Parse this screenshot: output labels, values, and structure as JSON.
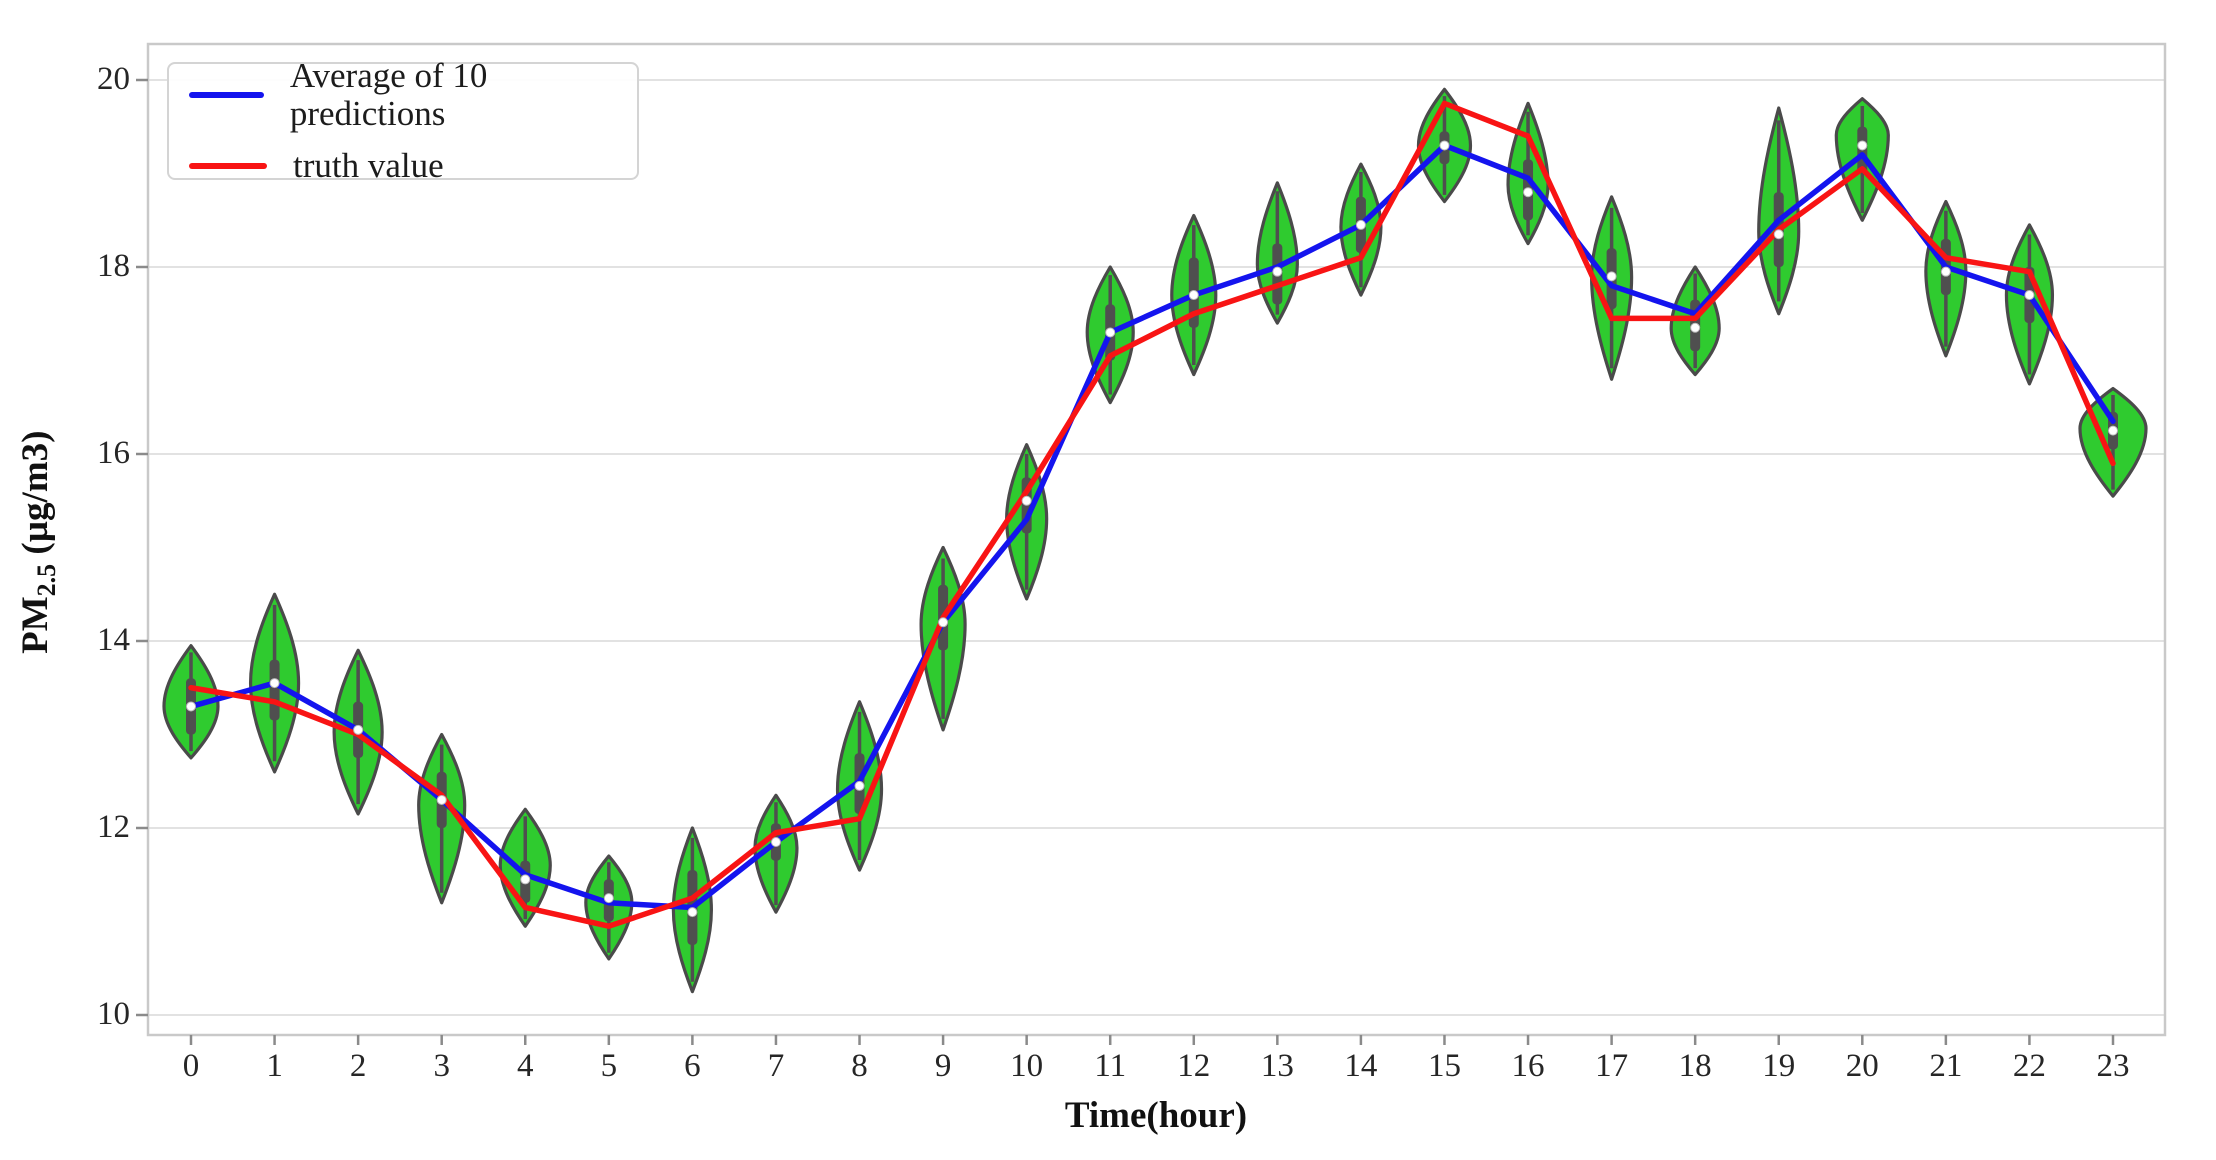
{
  "legend": {
    "items": [
      {
        "label": "Average of 10 predictions",
        "color": "#1414ee"
      },
      {
        "label": "truth value",
        "color": "#f81414"
      }
    ]
  },
  "x_axis": {
    "label": "Time(hour)",
    "ticks": [
      "0",
      "1",
      "2",
      "3",
      "4",
      "5",
      "6",
      "7",
      "8",
      "9",
      "10",
      "11",
      "12",
      "13",
      "14",
      "15",
      "16",
      "17",
      "18",
      "19",
      "20",
      "21",
      "22",
      "23"
    ]
  },
  "y_axis": {
    "label_main": "PM",
    "label_sub": "2.5",
    "label_unit": " (µg/m3)",
    "ticks": [
      "10",
      "12",
      "14",
      "16",
      "18",
      "20"
    ]
  },
  "chart_data": {
    "type": "violin+line",
    "title": "",
    "xlabel": "Time(hour)",
    "ylabel": "PM2.5 (ug/m3)",
    "categories": [
      0,
      1,
      2,
      3,
      4,
      5,
      6,
      7,
      8,
      9,
      10,
      11,
      12,
      13,
      14,
      15,
      16,
      17,
      18,
      19,
      20,
      21,
      22,
      23
    ],
    "ylim": [
      9.79,
      20.39
    ],
    "yticks": [
      10,
      12,
      14,
      16,
      18,
      20
    ],
    "grid": "horizontal",
    "legend_position": "upper-left",
    "series": [
      {
        "name": "Average of 10 predictions",
        "color": "#1414ee",
        "values": [
          13.3,
          13.55,
          13.05,
          12.3,
          11.5,
          11.2,
          11.15,
          11.85,
          12.5,
          14.2,
          15.3,
          17.3,
          17.7,
          18.0,
          18.45,
          19.3,
          18.95,
          17.8,
          17.5,
          18.5,
          19.2,
          18.0,
          17.7,
          16.35
        ]
      },
      {
        "name": "truth value",
        "color": "#f81414",
        "values": [
          13.5,
          13.35,
          13.0,
          12.35,
          11.15,
          10.95,
          11.25,
          11.95,
          12.1,
          14.25,
          15.6,
          17.05,
          17.5,
          17.8,
          18.1,
          19.75,
          19.4,
          17.45,
          17.45,
          18.4,
          19.05,
          18.1,
          17.95,
          15.9
        ]
      }
    ],
    "violins": [
      {
        "hour": 0,
        "min": 12.75,
        "max": 13.95,
        "median": 13.3,
        "q1": 13.0,
        "q3": 13.6,
        "half_width": 27,
        "peak_frac": 0.46
      },
      {
        "hour": 1,
        "min": 12.6,
        "max": 14.5,
        "median": 13.55,
        "q1": 13.15,
        "q3": 13.8,
        "half_width": 24,
        "peak_frac": 0.5
      },
      {
        "hour": 2,
        "min": 12.15,
        "max": 13.9,
        "median": 13.05,
        "q1": 12.75,
        "q3": 13.35,
        "half_width": 24,
        "peak_frac": 0.5
      },
      {
        "hour": 3,
        "min": 11.2,
        "max": 13.0,
        "median": 12.3,
        "q1": 12.0,
        "q3": 12.6,
        "half_width": 23,
        "peak_frac": 0.58
      },
      {
        "hour": 4,
        "min": 10.95,
        "max": 12.2,
        "median": 11.45,
        "q1": 11.2,
        "q3": 11.65,
        "half_width": 25,
        "peak_frac": 0.52
      },
      {
        "hour": 5,
        "min": 10.6,
        "max": 11.7,
        "median": 11.25,
        "q1": 11.0,
        "q3": 11.45,
        "half_width": 23,
        "peak_frac": 0.55
      },
      {
        "hour": 6,
        "min": 10.25,
        "max": 12.0,
        "median": 11.1,
        "q1": 10.75,
        "q3": 11.55,
        "half_width": 19,
        "peak_frac": 0.5
      },
      {
        "hour": 7,
        "min": 11.1,
        "max": 12.35,
        "median": 11.85,
        "q1": 11.65,
        "q3": 12.05,
        "half_width": 21,
        "peak_frac": 0.55
      },
      {
        "hour": 8,
        "min": 11.55,
        "max": 13.35,
        "median": 12.45,
        "q1": 12.15,
        "q3": 12.8,
        "half_width": 22,
        "peak_frac": 0.48
      },
      {
        "hour": 9,
        "min": 13.05,
        "max": 15.0,
        "median": 14.2,
        "q1": 13.9,
        "q3": 14.6,
        "half_width": 22,
        "peak_frac": 0.58
      },
      {
        "hour": 10,
        "min": 14.45,
        "max": 16.1,
        "median": 15.5,
        "q1": 15.15,
        "q3": 15.75,
        "half_width": 20,
        "peak_frac": 0.52
      },
      {
        "hour": 11,
        "min": 16.55,
        "max": 18.0,
        "median": 17.3,
        "q1": 17.0,
        "q3": 17.6,
        "half_width": 23,
        "peak_frac": 0.52
      },
      {
        "hour": 12,
        "min": 16.85,
        "max": 18.55,
        "median": 17.7,
        "q1": 17.35,
        "q3": 18.1,
        "half_width": 22,
        "peak_frac": 0.5
      },
      {
        "hour": 13,
        "min": 17.4,
        "max": 18.9,
        "median": 17.95,
        "q1": 17.6,
        "q3": 18.25,
        "half_width": 20,
        "peak_frac": 0.42
      },
      {
        "hour": 14,
        "min": 17.7,
        "max": 19.1,
        "median": 18.45,
        "q1": 18.15,
        "q3": 18.75,
        "half_width": 20,
        "peak_frac": 0.52
      },
      {
        "hour": 15,
        "min": 18.7,
        "max": 19.9,
        "median": 19.3,
        "q1": 19.1,
        "q3": 19.45,
        "half_width": 26,
        "peak_frac": 0.5
      },
      {
        "hour": 16,
        "min": 18.25,
        "max": 19.75,
        "median": 18.8,
        "q1": 18.5,
        "q3": 19.15,
        "half_width": 20,
        "peak_frac": 0.42
      },
      {
        "hour": 17,
        "min": 16.8,
        "max": 18.75,
        "median": 17.9,
        "q1": 17.55,
        "q3": 18.2,
        "half_width": 20,
        "peak_frac": 0.56
      },
      {
        "hour": 18,
        "min": 16.85,
        "max": 18.0,
        "median": 17.35,
        "q1": 17.1,
        "q3": 17.65,
        "half_width": 24,
        "peak_frac": 0.43
      },
      {
        "hour": 19,
        "min": 17.5,
        "max": 19.7,
        "median": 18.35,
        "q1": 18.0,
        "q3": 18.8,
        "half_width": 20,
        "peak_frac": 0.4
      },
      {
        "hour": 20,
        "min": 18.5,
        "max": 19.8,
        "median": 19.3,
        "q1": 19.0,
        "q3": 19.5,
        "half_width": 26,
        "peak_frac": 0.7
      },
      {
        "hour": 21,
        "min": 17.05,
        "max": 18.7,
        "median": 17.95,
        "q1": 17.7,
        "q3": 18.3,
        "half_width": 20,
        "peak_frac": 0.55
      },
      {
        "hour": 22,
        "min": 16.75,
        "max": 18.45,
        "median": 17.7,
        "q1": 17.4,
        "q3": 18.0,
        "half_width": 23,
        "peak_frac": 0.56
      },
      {
        "hour": 23,
        "min": 15.55,
        "max": 16.7,
        "median": 16.25,
        "q1": 16.05,
        "q3": 16.45,
        "half_width": 33,
        "peak_frac": 0.63
      }
    ],
    "colors": {
      "violin_fill": "#2fcb2f",
      "violin_edge": "#4a4a4a",
      "box_fill": "#4f4f4f",
      "median_dot": "#ffffff",
      "gridline": "#e2e2e2",
      "spine": "#c9c9c9",
      "tick_text": "#262626"
    }
  }
}
